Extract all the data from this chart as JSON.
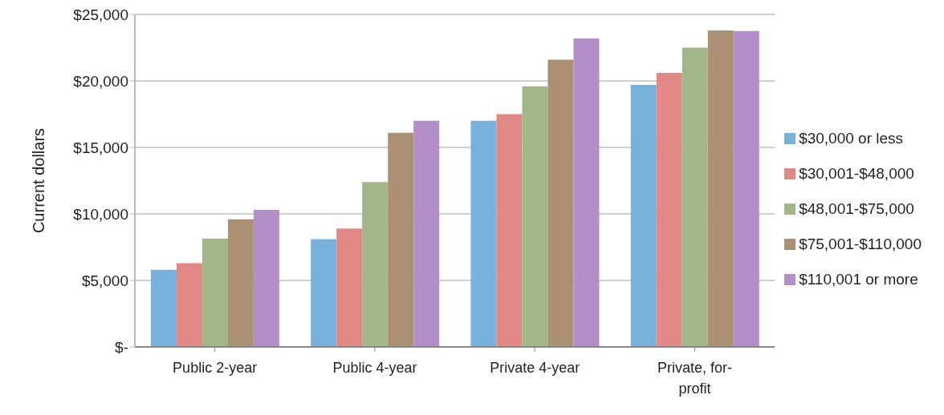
{
  "chart_data": {
    "type": "bar",
    "ylabel": "Current dollars",
    "categories": [
      "Public 2-year",
      "Public 4-year",
      "Private 4-year",
      "Private, for-profit"
    ],
    "series": [
      {
        "name": "$30,000 or less",
        "color": "#77b1dc",
        "values": [
          5800,
          8100,
          17000,
          19700
        ]
      },
      {
        "name": "$30,001-$48,000",
        "color": "#e28887",
        "values": [
          6300,
          8900,
          17500,
          20600
        ]
      },
      {
        "name": "$48,001-$75,000",
        "color": "#a1b789",
        "values": [
          8150,
          12400,
          19600,
          22500
        ]
      },
      {
        "name": "$75,001-$110,000",
        "color": "#ab9074",
        "values": [
          9600,
          16100,
          21600,
          23800
        ]
      },
      {
        "name": "$110,001 or more",
        "color": "#b38ec9",
        "values": [
          10300,
          17000,
          23200,
          23750
        ]
      }
    ],
    "ylim": [
      0,
      25000
    ],
    "yticks": [
      {
        "value": 0,
        "label": "$-"
      },
      {
        "value": 5000,
        "label": "$5,000"
      },
      {
        "value": 10000,
        "label": "$10,000"
      },
      {
        "value": 15000,
        "label": "$15,000"
      },
      {
        "value": 20000,
        "label": "$20,000"
      },
      {
        "value": 25000,
        "label": "$25,000"
      }
    ],
    "grid": "y",
    "legend": "right"
  }
}
